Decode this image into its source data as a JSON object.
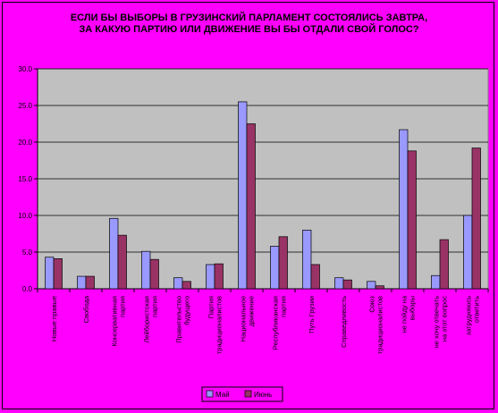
{
  "chart_data": {
    "type": "bar",
    "title_lines": [
      "ЕСЛИ БЫ ВЫБОРЫ В ГРУЗИНСКИЙ ПАРЛАМЕНТ СОСТОЯЛИСЬ ЗАВТРА,",
      "ЗА КАКУЮ ПАРТИЮ ИЛИ ДВИЖЕНИЕ  ВЫ БЫ ОТДАЛИ СВОЙ ГОЛОС?"
    ],
    "ylim": [
      0,
      30
    ],
    "yticks": [
      "0.0",
      "5.0",
      "10.0",
      "15.0",
      "20.0",
      "25.0",
      "30.0"
    ],
    "grid": true,
    "legend_position": "bottom",
    "colors": {
      "may": "#9999ff",
      "june": "#993366",
      "plot_bg": "#c0c0c0",
      "page_bg": "#ff00ff"
    },
    "categories": [
      [
        "Новые правые"
      ],
      [
        "Свобода"
      ],
      [
        "Консервативная",
        "партия"
      ],
      [
        "Лейбористская",
        "партия"
      ],
      [
        "Правительство",
        "будущего"
      ],
      [
        "Партия",
        "традиционалистов"
      ],
      [
        "Национальное",
        "движение"
      ],
      [
        "Республиканская",
        "партия"
      ],
      [
        "Путь Грузии"
      ],
      [
        "Справедливость"
      ],
      [
        "Союз",
        "традиционалистов"
      ],
      [
        "не пойду на",
        "выборы"
      ],
      [
        "не хочу отвечать",
        "на этот вопрос"
      ],
      [
        "затрудняюсь",
        "ответить"
      ]
    ],
    "series": [
      {
        "name": "Май",
        "values": [
          4.3,
          1.7,
          9.6,
          5.1,
          1.5,
          3.3,
          25.5,
          5.8,
          8.0,
          1.5,
          1.0,
          21.7,
          1.8,
          10.0
        ]
      },
      {
        "name": "Июнь",
        "values": [
          4.1,
          1.7,
          7.3,
          4.0,
          1.0,
          3.4,
          22.5,
          7.1,
          3.3,
          1.2,
          0.4,
          18.8,
          6.7,
          19.2
        ]
      }
    ]
  }
}
